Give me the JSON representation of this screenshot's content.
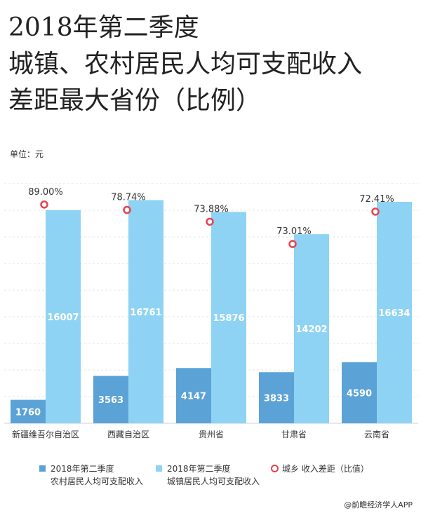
{
  "title_lines": [
    "2018年第二季度",
    "城镇、农村居民人均可支配收入",
    "差距最大省份（比例）"
  ],
  "unit_label": "单位：元",
  "colors": {
    "rural": "#5ba3d6",
    "urban": "#8ed3f4",
    "ratio_marker": "#e8424c"
  },
  "chart_data": {
    "type": "bar",
    "title": "2018年第二季度 城镇、农村居民人均可支配收入差距最大省份（比例）",
    "categories": [
      "新疆维吾尔自治区",
      "西藏自治区",
      "贵州省",
      "甘肃省",
      "云南省"
    ],
    "ylim": [
      0,
      18000
    ],
    "series": [
      {
        "name": "2018年第二季度 农村居民人均可支配收入",
        "values": [
          1760,
          3563,
          4147,
          3833,
          4590
        ]
      },
      {
        "name": "2018年第二季度 城镇居民人均可支配收入",
        "values": [
          16007,
          16761,
          15876,
          14202,
          16634
        ]
      }
    ],
    "ratio_series": {
      "name": "城乡收入差距（比值）",
      "labels": [
        "89.00%",
        "78.74%",
        "73.88%",
        "73.01%",
        "72.41%"
      ]
    },
    "grid": true,
    "legend_position": "bottom"
  },
  "legend": {
    "rural": {
      "line1": "2018年第二季度",
      "line2": "农村居民人均可支配收入"
    },
    "urban": {
      "line1": "2018年第二季度",
      "line2": "城镇居民人均可支配收入"
    },
    "ratio": {
      "label": "城乡 收入差距（比值）"
    }
  },
  "source": "@前瞻经济学人APP"
}
